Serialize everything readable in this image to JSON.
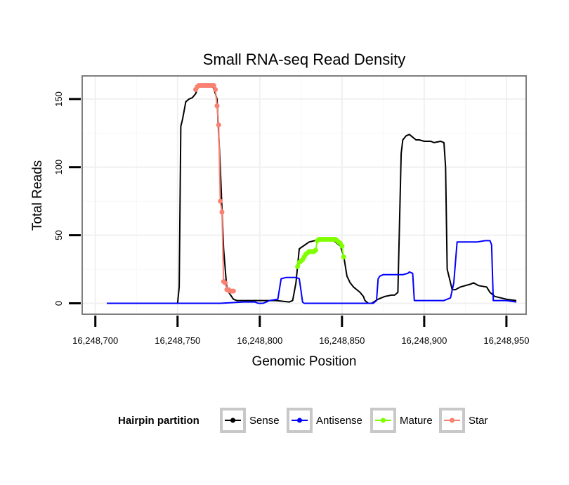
{
  "chart_data": {
    "type": "line",
    "title": "Small RNA-seq Read Density",
    "xlabel": "Genomic Position",
    "ylabel": "Total Reads",
    "xlim": [
      16248692,
      16248962
    ],
    "ylim": [
      -8,
      167
    ],
    "xticks": [
      16248700,
      16248750,
      16248800,
      16248850,
      16248900,
      16248950
    ],
    "xtick_labels": [
      "16,248,700",
      "16,248,750",
      "16,248,800",
      "16,248,850",
      "16,248,900",
      "16,248,950"
    ],
    "yticks": [
      0,
      50,
      100,
      150
    ],
    "ytick_labels": [
      "0",
      "50",
      "100",
      "150"
    ],
    "grid": true,
    "legend": {
      "title": "Hairpin partition",
      "position": "bottom",
      "entries": [
        {
          "name": "Sense",
          "color": "#000000"
        },
        {
          "name": "Antisense",
          "color": "#0000ff"
        },
        {
          "name": "Mature",
          "color": "#7fff00"
        },
        {
          "name": "Star",
          "color": "#fa8072"
        }
      ]
    },
    "series": [
      {
        "name": "Sense",
        "color": "#000000",
        "markers": false,
        "x": [
          16248707,
          16248750,
          16248751,
          16248752,
          16248753,
          16248755,
          16248757,
          16248759,
          16248761,
          16248763,
          16248766,
          16248770,
          16248772,
          16248774,
          16248776,
          16248778,
          16248780,
          16248784,
          16248786,
          16248800,
          16248810,
          16248818,
          16248820,
          16248822,
          16248824,
          16248830,
          16248840,
          16248845,
          16248849,
          16248851,
          16248853,
          16248855,
          16248857,
          16248859,
          16248861,
          16248863,
          16248864,
          16248866,
          16248868,
          16248872,
          16248876,
          16248880,
          16248882,
          16248884,
          16248886,
          16248887,
          16248889,
          16248891,
          16248893,
          16248895,
          16248897,
          16248900,
          16248904,
          16248906,
          16248910,
          16248912,
          16248913,
          16248914,
          16248915,
          16248917,
          16248919,
          16248922,
          16248925,
          16248928,
          16248930,
          16248933,
          16248938,
          16248940,
          16248943,
          16248950,
          16248956
        ],
        "y": [
          0,
          0,
          12,
          130,
          135,
          148,
          150,
          151,
          154,
          160,
          160,
          160,
          158,
          150,
          100,
          40,
          10,
          3,
          2,
          2,
          2,
          1,
          2,
          15,
          40,
          45,
          48,
          46,
          42,
          35,
          20,
          15,
          12,
          10,
          8,
          5,
          2,
          0,
          0,
          3,
          5,
          6,
          6,
          8,
          110,
          120,
          123,
          124,
          122,
          120,
          120,
          119,
          119,
          118,
          119,
          118,
          100,
          25,
          20,
          10,
          10,
          12,
          13,
          14,
          15,
          13,
          12,
          8,
          5,
          3,
          2
        ]
      },
      {
        "name": "Antisense",
        "color": "#0000ff",
        "markers": false,
        "x": [
          16248707,
          16248776,
          16248790,
          16248793,
          16248797,
          16248799,
          16248802,
          16248806,
          16248811,
          16248813,
          16248816,
          16248822,
          16248824,
          16248825,
          16248826,
          16248827,
          16248850,
          16248869,
          16248871,
          16248872,
          16248873,
          16248875,
          16248887,
          16248890,
          16248891,
          16248893,
          16248894,
          16248910,
          16248912,
          16248916,
          16248918,
          16248920,
          16248927,
          16248932,
          16248937,
          16248940,
          16248941,
          16248942,
          16248950,
          16248956
        ],
        "y": [
          0,
          0,
          1,
          1,
          1,
          0,
          0,
          2,
          3,
          18,
          19,
          19,
          18,
          10,
          1,
          0,
          0,
          0,
          2,
          18,
          20,
          21,
          21,
          22,
          23,
          22,
          2,
          2,
          2,
          4,
          15,
          45,
          45,
          45,
          46,
          46,
          43,
          2,
          2,
          1
        ]
      },
      {
        "name": "Mature",
        "color": "#7fff00",
        "markers": true,
        "x": [
          16248823,
          16248824,
          16248825,
          16248826,
          16248827,
          16248828,
          16248829,
          16248830,
          16248831,
          16248832,
          16248833,
          16248834,
          16248835,
          16248836,
          16248837,
          16248838,
          16248839,
          16248840,
          16248841,
          16248842,
          16248843,
          16248844,
          16248845,
          16248846,
          16248847,
          16248848,
          16248849,
          16248850,
          16248851
        ],
        "y": [
          27,
          30,
          31,
          32,
          34,
          36,
          37,
          38,
          38,
          38,
          38,
          39,
          46,
          47,
          47,
          47,
          47,
          47,
          47,
          47,
          47,
          47,
          47,
          47,
          46,
          45,
          44,
          42,
          34
        ]
      },
      {
        "name": "Star",
        "color": "#fa8072",
        "markers": true,
        "x": [
          16248761,
          16248762,
          16248763,
          16248764,
          16248765,
          16248766,
          16248767,
          16248768,
          16248769,
          16248770,
          16248771,
          16248772,
          16248773,
          16248774,
          16248775,
          16248776,
          16248777,
          16248778,
          16248779,
          16248780,
          16248781,
          16248782,
          16248783,
          16248784
        ],
        "y": [
          157,
          159,
          160,
          160,
          160,
          160,
          160,
          160,
          160,
          160,
          160,
          160,
          157,
          145,
          131,
          75,
          67,
          16,
          15,
          10,
          10,
          9,
          9,
          9
        ]
      }
    ]
  }
}
